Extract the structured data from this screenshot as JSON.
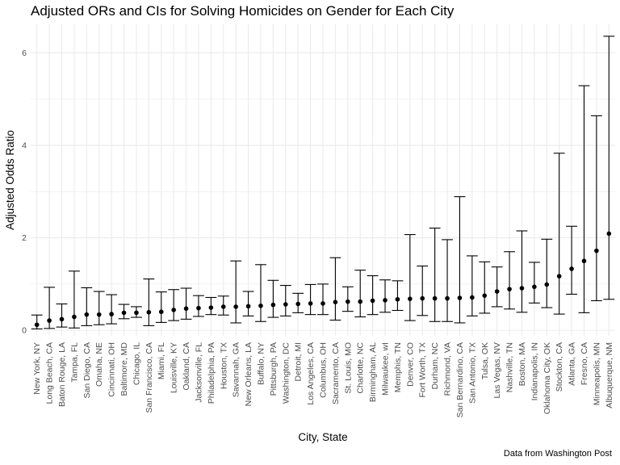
{
  "chart_data": {
    "type": "scatter",
    "title": "Adjusted ORs and CIs for Solving Homicides on Gender for Each City",
    "xlabel": "City, State",
    "ylabel": "Adjusted Odds Ratio",
    "caption": "Data from Washington Post",
    "grid": true,
    "legend": "none",
    "ylim": [
      -0.12,
      6.62
    ],
    "yticks": [
      0,
      2,
      4,
      6
    ],
    "ytick_labels": [
      "0",
      "2",
      "4",
      "6"
    ],
    "point_color": "#000000",
    "errorbar_color": "#000000",
    "grid_color": "#ebebeb",
    "categories": [
      "New York, NY",
      "Long Beach, CA",
      "Baton Rouge, LA",
      "Tampa, FL",
      "San Diego, CA",
      "Omaha, NE",
      "Cincinnati, OH",
      "Baltimore, MD",
      "Chicago, IL",
      "San Francisco, CA",
      "Miami, FL",
      "Louisville, KY",
      "Oakland, CA",
      "Jacksonville, FL",
      "Philadelphia, PA",
      "Houston, TX",
      "Savannah, GA",
      "New Orleans, LA",
      "Buffalo, NY",
      "Pittsburgh, PA",
      "Washington, DC",
      "Detroit, MI",
      "Los Angeles, CA",
      "Columbus, OH",
      "Sacramento, CA",
      "St. Louis, MO",
      "Charlotte, NC",
      "Birmingham, AL",
      "Milwaukee, wI",
      "Memphis, TN",
      "Denver, CO",
      "Fort Worth, TX",
      "Durham, NC",
      "Richmond, VA",
      "San Bernardino, CA",
      "San Antonio, TX",
      "Tulsa, OK",
      "Las Vegas, NV",
      "Nashville, TN",
      "Boston, MA",
      "Indianapolis, IN",
      "Oklahoma City, OK",
      "Stockton, CA",
      "Atlanta, GA",
      "Fresno, CA",
      "Minneapolis, MN",
      "Albuquerque, NM"
    ],
    "series": [
      {
        "values": [
          0.12,
          0.21,
          0.24,
          0.29,
          0.34,
          0.34,
          0.35,
          0.38,
          0.38,
          0.39,
          0.4,
          0.44,
          0.47,
          0.48,
          0.49,
          0.51,
          0.51,
          0.52,
          0.53,
          0.55,
          0.56,
          0.57,
          0.58,
          0.58,
          0.61,
          0.62,
          0.62,
          0.64,
          0.65,
          0.67,
          0.68,
          0.69,
          0.69,
          0.69,
          0.7,
          0.71,
          0.75,
          0.84,
          0.89,
          0.91,
          0.94,
          0.99,
          1.17,
          1.33,
          1.5,
          1.72,
          2.09
        ],
        "ci_low": [
          0.03,
          0.04,
          0.07,
          0.05,
          0.1,
          0.12,
          0.14,
          0.25,
          0.28,
          0.1,
          0.17,
          0.21,
          0.24,
          0.3,
          0.34,
          0.33,
          0.16,
          0.31,
          0.19,
          0.28,
          0.31,
          0.38,
          0.34,
          0.34,
          0.22,
          0.41,
          0.29,
          0.34,
          0.39,
          0.43,
          0.21,
          0.32,
          0.19,
          0.19,
          0.16,
          0.31,
          0.37,
          0.51,
          0.46,
          0.39,
          0.59,
          0.49,
          0.35,
          0.78,
          0.38,
          0.64,
          0.67
        ],
        "ci_high": [
          0.33,
          0.93,
          0.57,
          1.28,
          0.92,
          0.84,
          0.77,
          0.56,
          0.51,
          1.11,
          0.83,
          0.88,
          0.91,
          0.75,
          0.71,
          0.74,
          1.5,
          0.84,
          1.42,
          1.08,
          0.97,
          0.8,
          0.99,
          1.0,
          1.57,
          0.94,
          1.3,
          1.18,
          1.09,
          1.07,
          2.07,
          1.39,
          2.21,
          1.96,
          2.89,
          1.61,
          1.48,
          1.37,
          1.7,
          2.15,
          1.47,
          1.97,
          3.83,
          2.25,
          5.29,
          4.64,
          6.36
        ]
      }
    ]
  }
}
